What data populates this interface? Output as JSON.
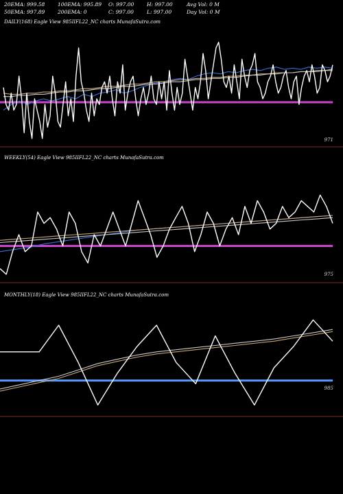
{
  "header": {
    "row1": [
      "20EMA: 999.58",
      "100EMA: 995.89",
      "O: 997.00",
      "H: 997.00",
      "Avg Vol: 0  M"
    ],
    "row2": [
      "50EMA: 997.89",
      "200EMA: 0",
      "C: 997.00",
      "L: 997.00",
      "Day Vol: 0  M"
    ]
  },
  "colors": {
    "background": "#000000",
    "price_line": "#ffffff",
    "ema_fast": "#3a6fe0",
    "ema_slow": "#c8a878",
    "ema_other": "#cccccc",
    "level_daily": "#cc44cc",
    "level_monthly": "#5599ff",
    "baseline": "#7a2a2a"
  },
  "chart_data": [
    {
      "type": "line",
      "title": "DAILY(168) Eagle  View  985IIFL22_NC charts MunafaSutra.com",
      "price_label": "971",
      "y_range": [
        0,
        100
      ],
      "level": 37,
      "level_color": "#cc44cc",
      "series": [
        {
          "color": "#ffffff",
          "values": [
            50,
            35,
            30,
            45,
            30,
            35,
            60,
            40,
            10,
            45,
            20,
            5,
            40,
            30,
            20,
            5,
            35,
            15,
            25,
            60,
            45,
            20,
            15,
            35,
            55,
            25,
            40,
            20,
            60,
            85,
            55,
            45,
            30,
            20,
            45,
            25,
            40,
            35,
            50,
            55,
            45,
            60,
            40,
            25,
            55,
            45,
            70,
            30,
            45,
            55,
            60,
            40,
            25,
            40,
            50,
            35,
            45,
            60,
            40,
            35,
            55,
            40,
            55,
            30,
            65,
            45,
            30,
            50,
            35,
            45,
            75,
            60,
            45,
            30,
            50,
            40,
            55,
            80,
            65,
            40,
            55,
            70,
            85,
            90,
            75,
            55,
            50,
            60,
            45,
            70,
            55,
            40,
            75,
            60,
            50,
            65,
            70,
            80,
            55,
            50,
            40,
            45,
            55,
            60,
            70,
            55,
            45,
            50,
            60,
            65,
            50,
            40,
            55,
            60,
            35,
            50,
            60,
            65,
            55,
            70,
            60,
            45,
            50,
            70,
            65,
            55,
            60,
            70
          ]
        },
        {
          "color": "#3a6fe0",
          "values": [
            30,
            35,
            38,
            35,
            38,
            40,
            38,
            40,
            42,
            40,
            44,
            42,
            45,
            46,
            48,
            45,
            47,
            50,
            52,
            54,
            55,
            57,
            58,
            57,
            60,
            62,
            63,
            62,
            64,
            63,
            65,
            66,
            65,
            67,
            68,
            66,
            67,
            66,
            68,
            67,
            68,
            67
          ]
        },
        {
          "color": "#c8a878",
          "values": [
            45,
            44,
            44,
            45,
            45,
            46,
            46,
            47,
            47,
            48,
            49,
            49,
            50,
            51,
            51,
            52,
            53,
            53,
            54,
            55,
            55,
            56,
            57,
            57,
            58,
            58,
            59,
            59,
            60,
            60,
            61,
            61,
            62,
            62,
            63,
            63,
            63,
            64,
            64,
            64,
            65,
            65
          ]
        },
        {
          "color": "#cccccc",
          "values": [
            42,
            42,
            43,
            43,
            44,
            44,
            45,
            46,
            46,
            47,
            47,
            48,
            49,
            49,
            50,
            51,
            51,
            52,
            53,
            53,
            54,
            55,
            55,
            56,
            57,
            57,
            58,
            58,
            59,
            59,
            60,
            61,
            61,
            62,
            62,
            63,
            63,
            64,
            64,
            65,
            65,
            66
          ]
        }
      ]
    },
    {
      "type": "line",
      "title": "WEEKLY(54) Eagle  View  985IIFL22_NC charts MunafaSutra.com",
      "price_label": "975",
      "y_range": [
        0,
        100
      ],
      "level": 30,
      "level_color": "#cc44cc",
      "series": [
        {
          "color": "#ffffff",
          "values": [
            10,
            5,
            25,
            40,
            25,
            30,
            60,
            50,
            55,
            45,
            30,
            60,
            50,
            25,
            15,
            40,
            30,
            45,
            60,
            45,
            30,
            50,
            70,
            55,
            40,
            20,
            30,
            45,
            55,
            65,
            50,
            25,
            40,
            60,
            50,
            30,
            45,
            55,
            40,
            65,
            50,
            70,
            60,
            45,
            50,
            65,
            55,
            60,
            70,
            65,
            60,
            75,
            65,
            50
          ]
        },
        {
          "color": "#3a6fe0",
          "values": [
            25,
            27,
            29,
            32,
            34,
            36,
            38,
            40,
            42,
            44,
            45,
            46,
            47,
            48,
            49,
            50,
            51,
            52,
            53,
            54,
            55,
            56,
            57
          ]
        },
        {
          "color": "#c8a878",
          "values": [
            35,
            36,
            37,
            38,
            39,
            40,
            41,
            42,
            43,
            44,
            45,
            46,
            47,
            48,
            49,
            50,
            51,
            52,
            53,
            54,
            55,
            56,
            57
          ]
        },
        {
          "color": "#cccccc",
          "values": [
            33,
            34,
            35,
            36,
            37,
            38,
            39,
            40,
            41,
            42,
            43,
            44,
            45,
            46,
            47,
            48,
            49,
            50,
            51,
            52,
            53,
            54,
            55
          ]
        }
      ]
    },
    {
      "type": "line",
      "title": "MONTHLY(18) Eagle  View  985IIFL22_NC charts MunafaSutra.com",
      "price_label": "985",
      "y_range": [
        0,
        100
      ],
      "level": 28,
      "level_color": "#5599ff",
      "series": [
        {
          "color": "#ffffff",
          "values": [
            55,
            55,
            55,
            80,
            45,
            5,
            35,
            60,
            80,
            45,
            25,
            70,
            35,
            5,
            40,
            60,
            85,
            65
          ]
        },
        {
          "color": "#cccccc",
          "values": [
            20,
            24,
            28,
            32,
            38,
            44,
            48,
            52,
            55,
            57,
            59,
            61,
            63,
            65,
            67,
            70,
            73,
            76
          ]
        },
        {
          "color": "#c8a878",
          "values": [
            18,
            22,
            26,
            30,
            36,
            42,
            46,
            50,
            53,
            55,
            57,
            59,
            61,
            63,
            65,
            68,
            71,
            74
          ]
        }
      ]
    }
  ]
}
